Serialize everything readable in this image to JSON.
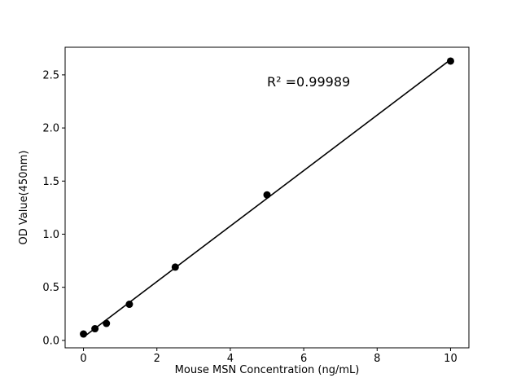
{
  "chart_data": {
    "type": "scatter",
    "x": [
      0,
      0.3125,
      0.625,
      1.25,
      2.5,
      5,
      10
    ],
    "y": [
      0.06,
      0.11,
      0.16,
      0.34,
      0.69,
      1.37,
      2.63
    ],
    "fit_line": true,
    "annotation": "R² =0.99989",
    "title": "",
    "xlabel": "Mouse MSN Concentration (ng/mL)",
    "ylabel": "OD Value(450nm)",
    "xlim": [
      -0.5,
      10.5
    ],
    "ylim": [
      -0.07,
      2.76
    ],
    "xticks": [
      0,
      2,
      4,
      6,
      8,
      10
    ],
    "yticks": [
      0.0,
      0.5,
      1.0,
      1.5,
      2.0,
      2.5
    ],
    "grid": false,
    "legend": "none",
    "marker_color": "#000000",
    "line_color": "#000000",
    "background": "#ffffff"
  }
}
